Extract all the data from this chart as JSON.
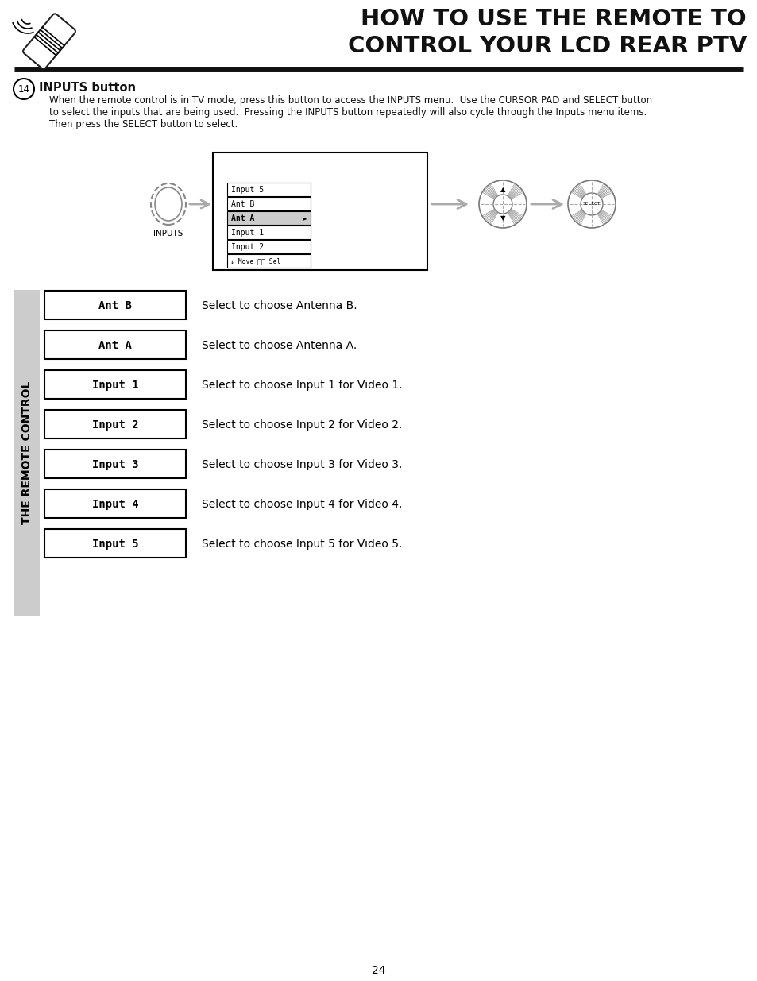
{
  "title_line1": "HOW TO USE THE REMOTE TO",
  "title_line2": "CONTROL YOUR LCD REAR PTV",
  "section_number": "14",
  "section_title": "INPUTS button",
  "section_body_1": "When the remote control is in TV mode, press this button to access the INPUTS menu.  Use the CURSOR PAD and SELECT button",
  "section_body_2": "to select the inputs that are being used.  Pressing the INPUTS button repeatedly will also cycle through the Inputs menu items.",
  "section_body_3": "Then press the SELECT button to select.",
  "menu_items": [
    "Input 5",
    "Ant B",
    "Ant A",
    "Input 1",
    "Input 2"
  ],
  "menu_highlighted": "Ant A",
  "sidebar_text": "THE REMOTE CONTROL",
  "input_rows": [
    {
      "label": "Ant B",
      "desc": "Select to choose Antenna B."
    },
    {
      "label": "Ant A",
      "desc": "Select to choose Antenna A."
    },
    {
      "label": "Input 1",
      "desc": "Select to choose Input 1 for Video 1."
    },
    {
      "label": "Input 2",
      "desc": "Select to choose Input 2 for Video 2."
    },
    {
      "label": "Input 3",
      "desc": "Select to choose Input 3 for Video 3."
    },
    {
      "label": "Input 4",
      "desc": "Select to choose Input 4 for Video 4."
    },
    {
      "label": "Input 5",
      "desc": "Select to choose Input 5 for Video 5."
    }
  ],
  "page_number": "24",
  "bg_color": "#ffffff",
  "text_color": "#000000",
  "sidebar_bg": "#cccccc"
}
